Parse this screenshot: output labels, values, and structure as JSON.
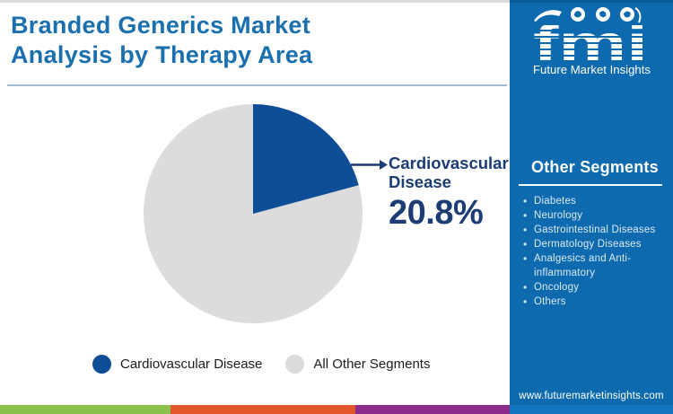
{
  "header": {
    "title_line1": "Branded Generics Market",
    "title_line2": "Analysis by Therapy Area"
  },
  "logo": {
    "name": "fmi",
    "tagline": "Future Market Insights"
  },
  "chart_data": {
    "type": "pie",
    "title": "Branded Generics Market Analysis by Therapy Area",
    "slices": [
      {
        "label": "Cardiovascular Disease",
        "value": 20.8,
        "color": "#0d4e96"
      },
      {
        "label": "All Other Segments",
        "value": 79.2,
        "color": "#dcdcdc"
      }
    ],
    "start_angle_deg": 0,
    "direction": "clockwise",
    "callout": {
      "label": "Cardiovascular Disease",
      "value": "20.8%"
    }
  },
  "legend": {
    "items": [
      {
        "label": "Cardiovascular Disease",
        "color": "#0d4e96"
      },
      {
        "label": "All Other Segments",
        "color": "#dcdcdc"
      }
    ]
  },
  "sidebar": {
    "heading": "Other Segments",
    "items": [
      "Diabetes",
      "Neurology",
      "Gastrointestinal Diseases",
      "Dermatology Diseases",
      "Analgesics and Anti-inflammatory",
      "Oncology",
      "Others"
    ],
    "website": "www.futuremarketinsights.com"
  },
  "colors": {
    "brand-blue": "#0e6aae",
    "title-blue": "#1a70ae",
    "pie-primary": "#0d4e96",
    "pie-secondary": "#dcdcdc",
    "callout-navy": "#1b3c74",
    "underline": "#9fbcd4",
    "stripe-green": "#8cc04c",
    "stripe-orange": "#e1572a",
    "stripe-purple": "#8e2c8c",
    "stripe-blue": "#1375bf"
  }
}
